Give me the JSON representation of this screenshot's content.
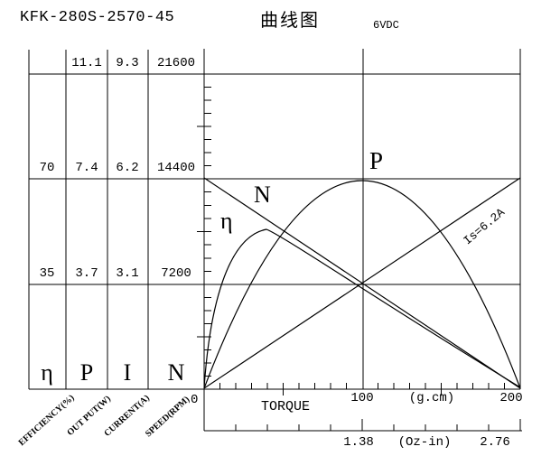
{
  "header": {
    "model": "KFK-280S-2570-45",
    "title": "曲线图",
    "voltage": "6VDC"
  },
  "table": {
    "rows": [
      {
        "cells": [
          "",
          "11.1",
          "9.3",
          "21600"
        ]
      },
      {
        "cells": [
          "70",
          "7.4",
          "6.2",
          "14400"
        ]
      },
      {
        "cells": [
          "35",
          "3.7",
          "3.1",
          "7200"
        ]
      }
    ],
    "symbols": [
      "η",
      "P",
      "I",
      "N"
    ],
    "axis_titles": [
      "EFFICIENCY(%)",
      "OUT PUT(W)",
      "CURRENT(A)",
      "SPEED(RPM)"
    ]
  },
  "chart": {
    "labels": {
      "speed": "N",
      "power": "P",
      "efficiency": "η",
      "current_line": "Is=6.2A"
    },
    "x_axis": {
      "origin": "0",
      "title": "TORQUE",
      "mid": "100",
      "unit": "(g.cm)",
      "end": "200"
    },
    "x_axis_secondary": {
      "mid": "1.38",
      "unit": "(Oz-in)",
      "end": "2.76"
    }
  },
  "chart_data": {
    "type": "line",
    "title": "曲线图",
    "model": "KFK-280S-2570-45",
    "voltage": "6VDC",
    "xlabel": "TORQUE",
    "x_units": [
      "(g.cm)",
      "(Oz-in)"
    ],
    "xlim_gcm": [
      0,
      200
    ],
    "x_ticks_gcm": [
      0,
      100,
      200
    ],
    "x_ticks_ozin": [
      0,
      1.38,
      2.76
    ],
    "grid": true,
    "axes": [
      {
        "symbol": "η",
        "label": "EFFICIENCY(%)",
        "gridline_values": [
          0,
          35,
          70
        ]
      },
      {
        "symbol": "P",
        "label": "OUT PUT(W)",
        "gridline_values": [
          0,
          3.7,
          7.4,
          11.1
        ]
      },
      {
        "symbol": "I",
        "label": "CURRENT(A)",
        "gridline_values": [
          0,
          3.1,
          6.2,
          9.3
        ]
      },
      {
        "symbol": "N",
        "label": "SPEED(RPM)",
        "gridline_values": [
          0,
          7200,
          14400,
          21600
        ]
      }
    ],
    "series": [
      {
        "name": "speed",
        "label": "N",
        "axis": "SPEED(RPM)",
        "shape": "linear",
        "points": [
          [
            0,
            14400
          ],
          [
            200,
            0
          ]
        ]
      },
      {
        "name": "output-power",
        "label": "P",
        "axis": "OUT PUT(W)",
        "shape": "parabolic",
        "points": [
          [
            0,
            0
          ],
          [
            100,
            7.4
          ],
          [
            200,
            0
          ]
        ]
      },
      {
        "name": "efficiency",
        "label": "η",
        "axis": "EFFICIENCY(%)",
        "shape": "peaked",
        "points": [
          [
            0,
            0
          ],
          [
            40,
            53
          ],
          [
            200,
            0
          ]
        ]
      },
      {
        "name": "stall-current",
        "label": "Is=6.2A",
        "axis": "CURRENT(A)",
        "shape": "linear",
        "points": [
          [
            0,
            0
          ],
          [
            200,
            6.2
          ]
        ]
      }
    ]
  }
}
